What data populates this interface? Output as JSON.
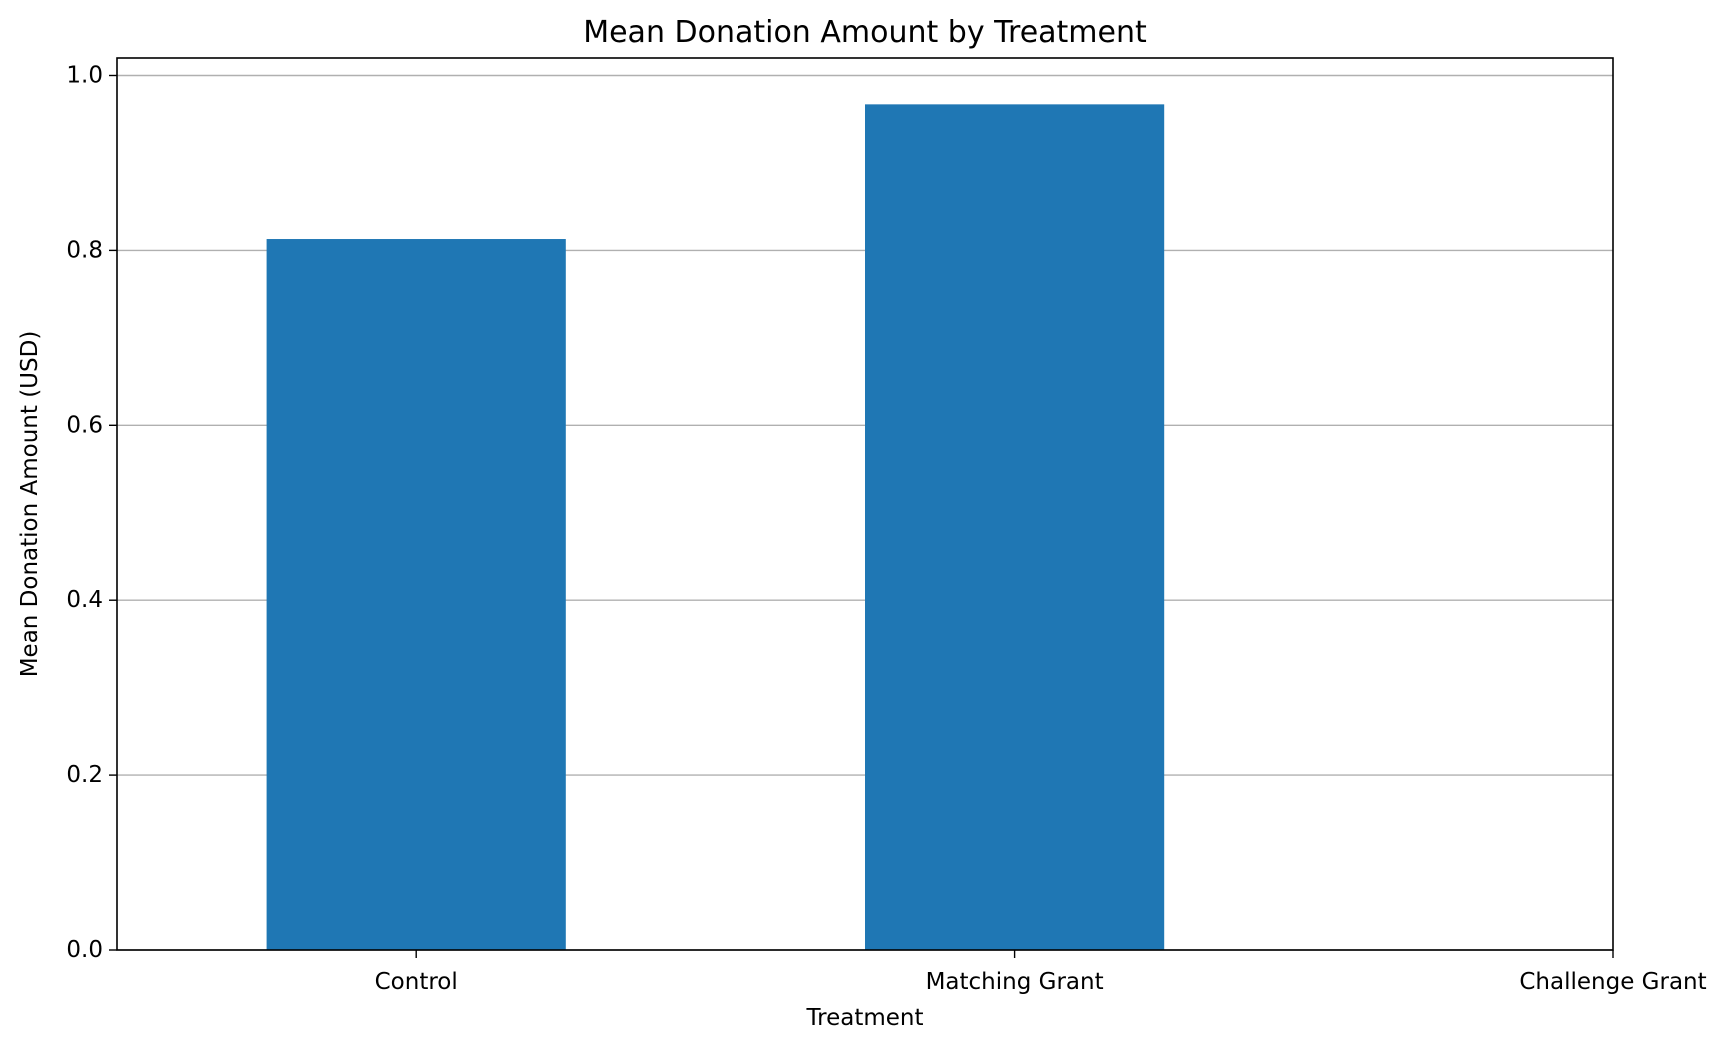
{
  "chart_data": {
    "type": "bar",
    "title": "Mean Donation Amount by Treatment",
    "xlabel": "Treatment",
    "ylabel": "Mean Donation Amount (USD)",
    "categories": [
      "Control",
      "Matching Grant",
      "Challenge Grant"
    ],
    "values": [
      0.813,
      0.967,
      null
    ],
    "ylim": [
      0.0,
      1.02
    ],
    "yticks": [
      0.0,
      0.2,
      0.4,
      0.6,
      0.8,
      1.0
    ],
    "ytick_labels": [
      "0.0",
      "0.2",
      "0.4",
      "0.6",
      "0.8",
      "1.0"
    ],
    "grid": "y-major",
    "bar_color": "#1f77b4",
    "grid_color": "#b0b0b0"
  }
}
